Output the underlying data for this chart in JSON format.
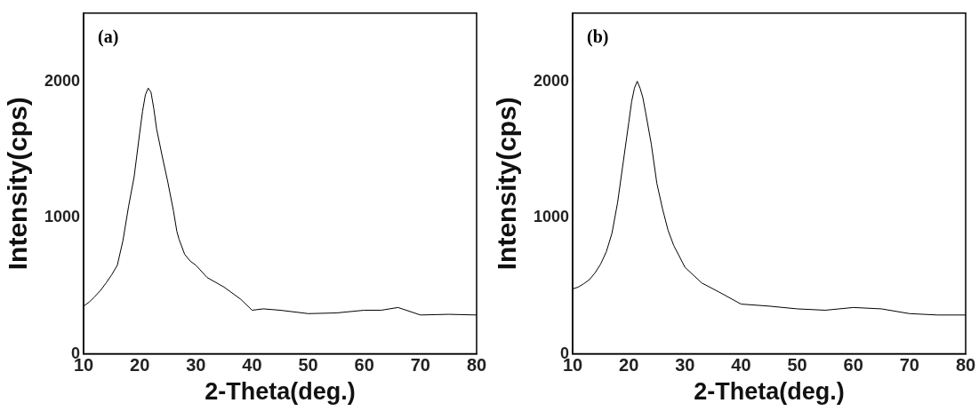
{
  "chart_data": [
    {
      "type": "line",
      "xlabel": "2-Theta(deg.)",
      "ylabel": "Intensity(cps)",
      "annotations": [
        "(a)"
      ],
      "xlim": [
        10,
        80
      ],
      "xticks": [
        10,
        20,
        30,
        40,
        50,
        60,
        70,
        80
      ],
      "ylim": [
        0,
        2500
      ],
      "yticks": [
        0,
        1000,
        2000
      ],
      "grid": false,
      "legend": false,
      "marker": "none",
      "line_style": "solid",
      "series": [
        {
          "color": "#000000",
          "x": [
            10,
            11,
            12,
            13,
            14,
            15,
            16,
            17,
            18,
            19,
            20,
            20.5,
            21,
            21.5,
            22,
            22.5,
            23,
            24,
            25,
            26,
            26.6,
            27,
            28,
            29,
            30,
            32,
            35,
            38,
            40,
            42,
            45,
            50,
            55,
            60,
            63,
            66,
            70,
            75,
            80
          ],
          "values": [
            350,
            380,
            420,
            465,
            520,
            580,
            650,
            830,
            1080,
            1300,
            1625,
            1780,
            1900,
            1950,
            1920,
            1800,
            1650,
            1450,
            1260,
            1050,
            900,
            840,
            730,
            680,
            650,
            560,
            490,
            400,
            320,
            330,
            320,
            295,
            300,
            320,
            320,
            340,
            285,
            290,
            285
          ]
        }
      ]
    },
    {
      "type": "line",
      "xlabel": "2-Theta(deg.)",
      "ylabel": "Intensity(cps)",
      "annotations": [
        "(b)"
      ],
      "xlim": [
        10,
        80
      ],
      "xticks": [
        10,
        20,
        30,
        40,
        50,
        60,
        70,
        80
      ],
      "ylim": [
        0,
        2500
      ],
      "yticks": [
        0,
        1000,
        2000
      ],
      "grid": false,
      "legend": false,
      "marker": "none",
      "line_style": "solid",
      "series": [
        {
          "color": "#000000",
          "x": [
            10,
            11,
            12,
            13,
            14,
            15,
            16,
            17,
            18,
            19,
            20,
            20.5,
            21,
            21.5,
            22,
            22.5,
            23,
            24,
            25,
            26,
            27,
            28,
            30,
            33,
            36,
            40,
            45,
            50,
            55,
            60,
            65,
            70,
            75,
            80
          ],
          "values": [
            476,
            490,
            515,
            545,
            595,
            660,
            750,
            885,
            1110,
            1405,
            1700,
            1850,
            1950,
            2000,
            1950,
            1880,
            1770,
            1540,
            1250,
            1065,
            905,
            795,
            635,
            520,
            455,
            365,
            350,
            330,
            320,
            340,
            330,
            295,
            285,
            285
          ]
        }
      ]
    }
  ]
}
